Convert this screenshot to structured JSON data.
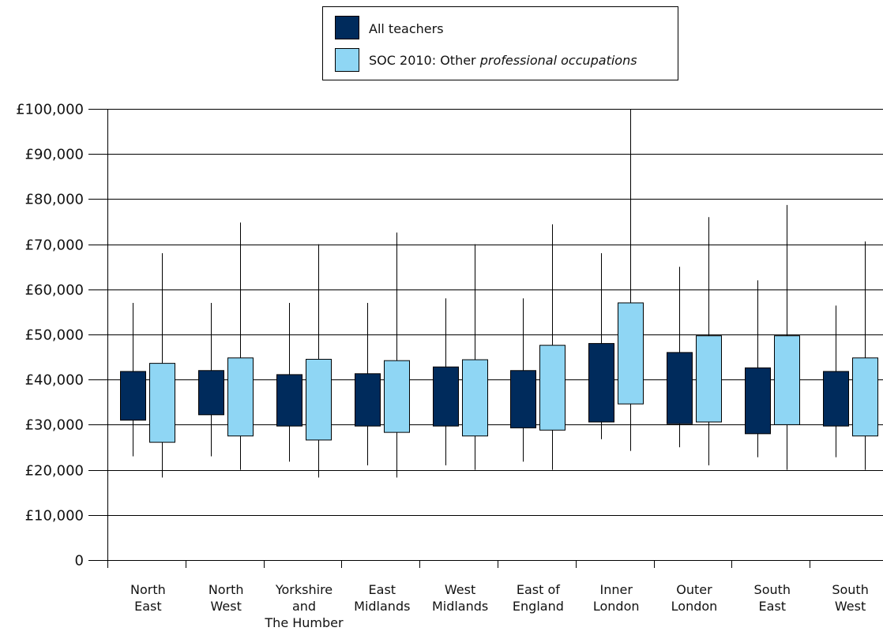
{
  "colors": {
    "all_teachers": "#002b5c",
    "other_professional": "#8fd6f4",
    "axis": "#000000",
    "grid": "#000000"
  },
  "legend": {
    "items": [
      {
        "series": "All teachers",
        "text": "All teachers",
        "italic": ""
      },
      {
        "series": "SOC 2010: Other professional occupations",
        "text": "SOC 2010: Other ",
        "italic": "professional occupations"
      }
    ]
  },
  "chart_data": {
    "type": "boxplot",
    "title": "",
    "xlabel": "",
    "ylabel": "",
    "ylim": [
      0,
      100000
    ],
    "yticks": [
      0,
      10000,
      20000,
      30000,
      40000,
      50000,
      60000,
      70000,
      80000,
      90000,
      100000
    ],
    "ytick_labels": [
      "0",
      "£10,000",
      "£20,000",
      "£30,000",
      "£40,000",
      "£50,000",
      "£60,000",
      "£70,000",
      "£80,000",
      "£90,000",
      "£100,000"
    ],
    "grid": true,
    "legend_position": "top-center",
    "categories": [
      {
        "key": "north-east",
        "lines": [
          "North",
          "East"
        ]
      },
      {
        "key": "north-west",
        "lines": [
          "North",
          "West"
        ]
      },
      {
        "key": "yorkshire",
        "lines": [
          "Yorkshire",
          "and",
          "The Humber"
        ]
      },
      {
        "key": "east-midlands",
        "lines": [
          "East",
          "Midlands"
        ]
      },
      {
        "key": "west-midlands",
        "lines": [
          "West",
          "Midlands"
        ]
      },
      {
        "key": "east-of-england",
        "lines": [
          "East of",
          "England"
        ]
      },
      {
        "key": "inner-london",
        "lines": [
          "Inner",
          "London"
        ]
      },
      {
        "key": "outer-london",
        "lines": [
          "Outer",
          "London"
        ]
      },
      {
        "key": "south-east",
        "lines": [
          "South",
          "East"
        ]
      },
      {
        "key": "south-west",
        "lines": [
          "South",
          "West"
        ]
      }
    ],
    "series": [
      {
        "name": "All teachers",
        "data": [
          {
            "min": 23000,
            "q1": 31000,
            "q3": 41800,
            "max": 57000
          },
          {
            "min": 23000,
            "q1": 32200,
            "q3": 42000,
            "max": 57000
          },
          {
            "min": 21800,
            "q1": 29700,
            "q3": 41100,
            "max": 57000
          },
          {
            "min": 21000,
            "q1": 29700,
            "q3": 41300,
            "max": 57000
          },
          {
            "min": 21000,
            "q1": 29700,
            "q3": 42800,
            "max": 58000
          },
          {
            "min": 21800,
            "q1": 29300,
            "q3": 42000,
            "max": 58000
          },
          {
            "min": 26800,
            "q1": 30600,
            "q3": 48000,
            "max": 68000
          },
          {
            "min": 25000,
            "q1": 30200,
            "q3": 46000,
            "max": 65000
          },
          {
            "min": 22800,
            "q1": 28000,
            "q3": 42600,
            "max": 62000
          },
          {
            "min": 22800,
            "q1": 29700,
            "q3": 41800,
            "max": 56400
          }
        ]
      },
      {
        "name": "SOC 2010: Other professional occupations",
        "data": [
          {
            "min": 18300,
            "q1": 26100,
            "q3": 43600,
            "max": 68000
          },
          {
            "min": 20000,
            "q1": 27500,
            "q3": 44800,
            "max": 74800
          },
          {
            "min": 18300,
            "q1": 26600,
            "q3": 44500,
            "max": 70000
          },
          {
            "min": 18300,
            "q1": 28300,
            "q3": 44200,
            "max": 72600
          },
          {
            "min": 20000,
            "q1": 27500,
            "q3": 44400,
            "max": 70000
          },
          {
            "min": 20000,
            "q1": 28800,
            "q3": 47600,
            "max": 74400
          },
          {
            "min": 24200,
            "q1": 34600,
            "q3": 57000,
            "max": 100000
          },
          {
            "min": 21000,
            "q1": 30600,
            "q3": 49700,
            "max": 76000
          },
          {
            "min": 20000,
            "q1": 30000,
            "q3": 49700,
            "max": 78700
          },
          {
            "min": 20000,
            "q1": 27500,
            "q3": 44800,
            "max": 70600
          }
        ]
      }
    ]
  }
}
